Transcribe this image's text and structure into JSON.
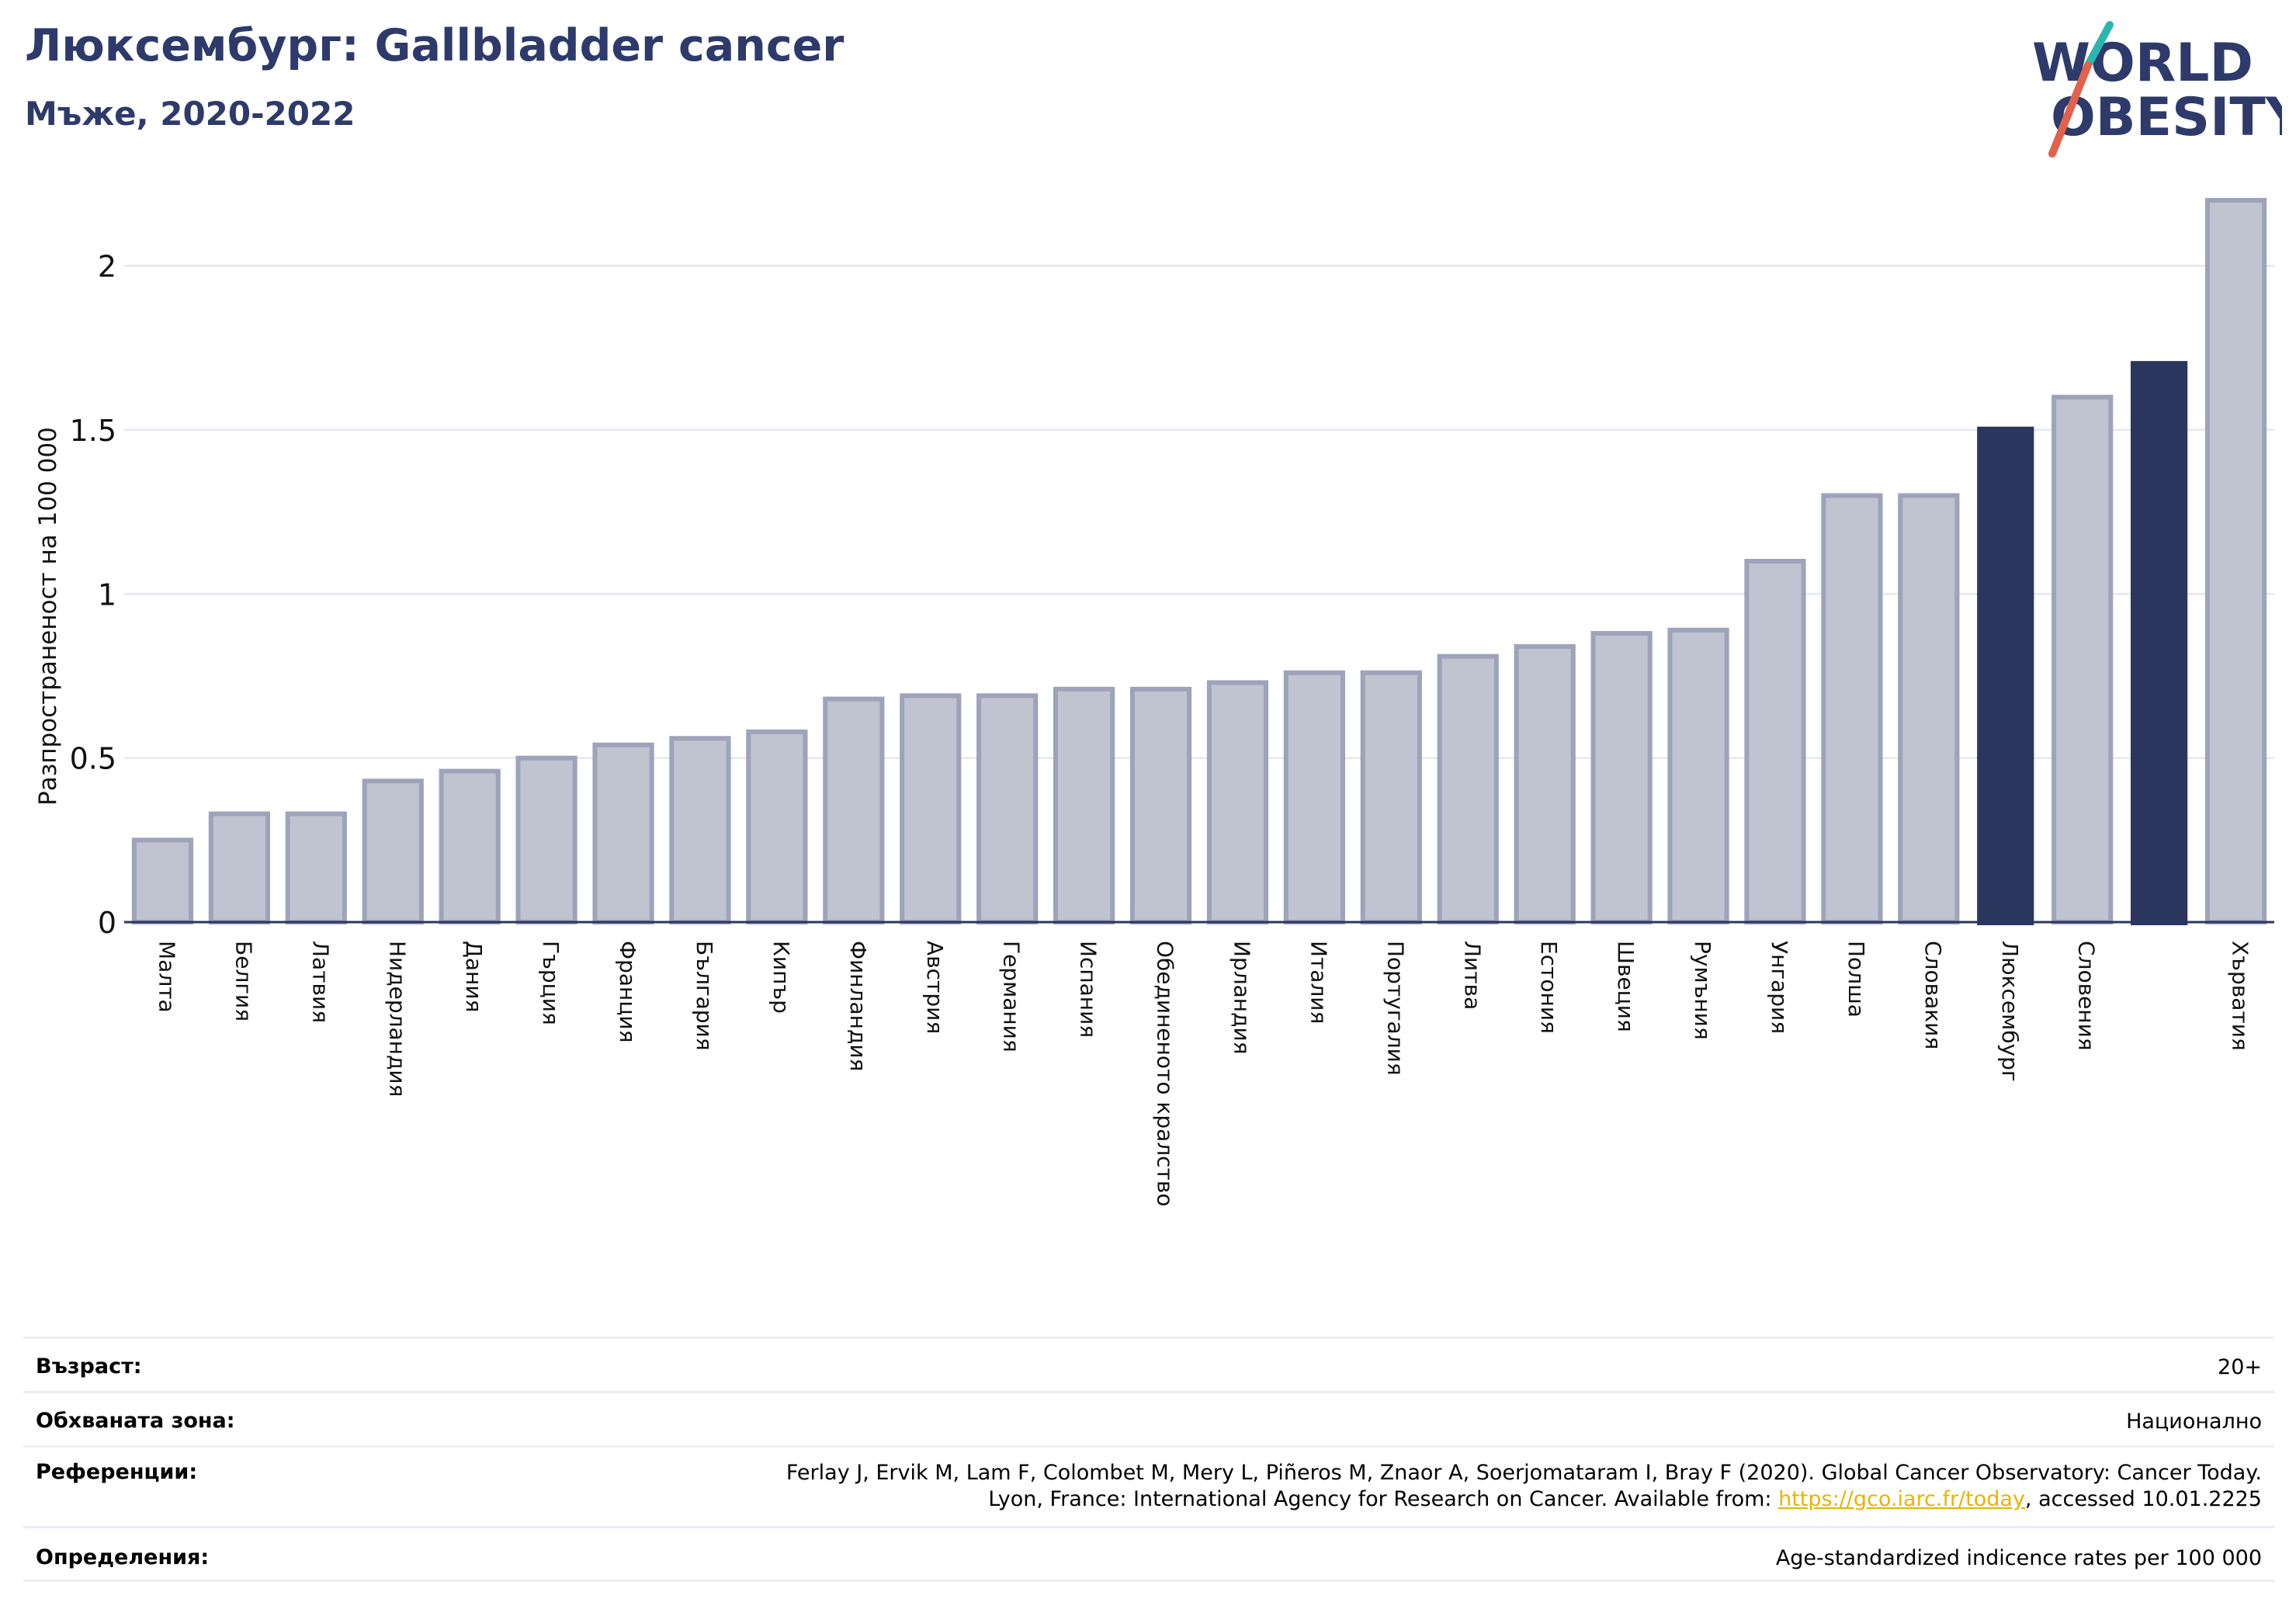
{
  "header": {
    "title": "Люксембург: Gallbladder cancer",
    "subtitle": "Мъже, 2020-2022"
  },
  "logo": {
    "line1": "WORLD",
    "line2": "OBESITY",
    "colors": {
      "text": "#2d3a6a",
      "slash_top": "#2bb5b0",
      "slash_bottom": "#e2614c"
    }
  },
  "chart_data": {
    "type": "bar",
    "ylabel": "Разпространеност  на 100 000",
    "xlabel": "",
    "ylim": [
      0,
      2.2
    ],
    "yticks": [
      0,
      0.5,
      1,
      1.5,
      2
    ],
    "ytick_labels": [
      "0",
      "0.5",
      "1",
      "1.5",
      "2"
    ],
    "grid": true,
    "categories": [
      "Малта",
      "Белгия",
      "Латвия",
      "Нидерландия",
      "Дания",
      "Гърция",
      "Франция",
      "България",
      "Кипър",
      "Финландия",
      "Австрия",
      "Германия",
      "Испания",
      "Обединеното кралство",
      "Ирландия",
      "Италия",
      "Португалия",
      "Литва",
      "Естония",
      "Швеция",
      "Румъния",
      "Унгария",
      "Полша",
      "Словакия",
      "Люксембург",
      "Словения",
      "",
      "Хърватия"
    ],
    "values": [
      0.25,
      0.33,
      0.33,
      0.43,
      0.46,
      0.5,
      0.54,
      0.56,
      0.58,
      0.68,
      0.69,
      0.69,
      0.71,
      0.71,
      0.73,
      0.76,
      0.76,
      0.81,
      0.84,
      0.88,
      0.89,
      1.1,
      1.3,
      1.3,
      1.51,
      1.6,
      1.71,
      2.2
    ],
    "highlighted": [
      false,
      false,
      false,
      false,
      false,
      false,
      false,
      false,
      false,
      false,
      false,
      false,
      false,
      false,
      false,
      false,
      false,
      false,
      false,
      false,
      false,
      false,
      false,
      false,
      true,
      false,
      true,
      false
    ],
    "colors": {
      "bar": "#c0c3d0",
      "bar_border": "#9ea3ba",
      "highlight": "#2b365f",
      "grid": "#e8ebf0",
      "axis": "#2b365f"
    }
  },
  "info": {
    "rows": [
      {
        "label": "Възраст:",
        "value": "20+"
      },
      {
        "label": "Обхваната зона:",
        "value": "Национално"
      },
      {
        "label": "Референции:",
        "value_line1": "Ferlay J, Ervik M, Lam F, Colombet M, Mery L, Piñeros M, Znaor A, Soerjomataram I, Bray F (2020). Global Cancer Observatory: Cancer Today.",
        "value_line2_pre": "Lyon, France: International Agency for Research on Cancer. Available from: ",
        "link": "https://gco.iarc.fr/today",
        "value_line2_post": ", accessed 10.01.2225"
      },
      {
        "label": "Определения:",
        "value": "Age-standardized indicence rates per 100 000"
      }
    ]
  }
}
